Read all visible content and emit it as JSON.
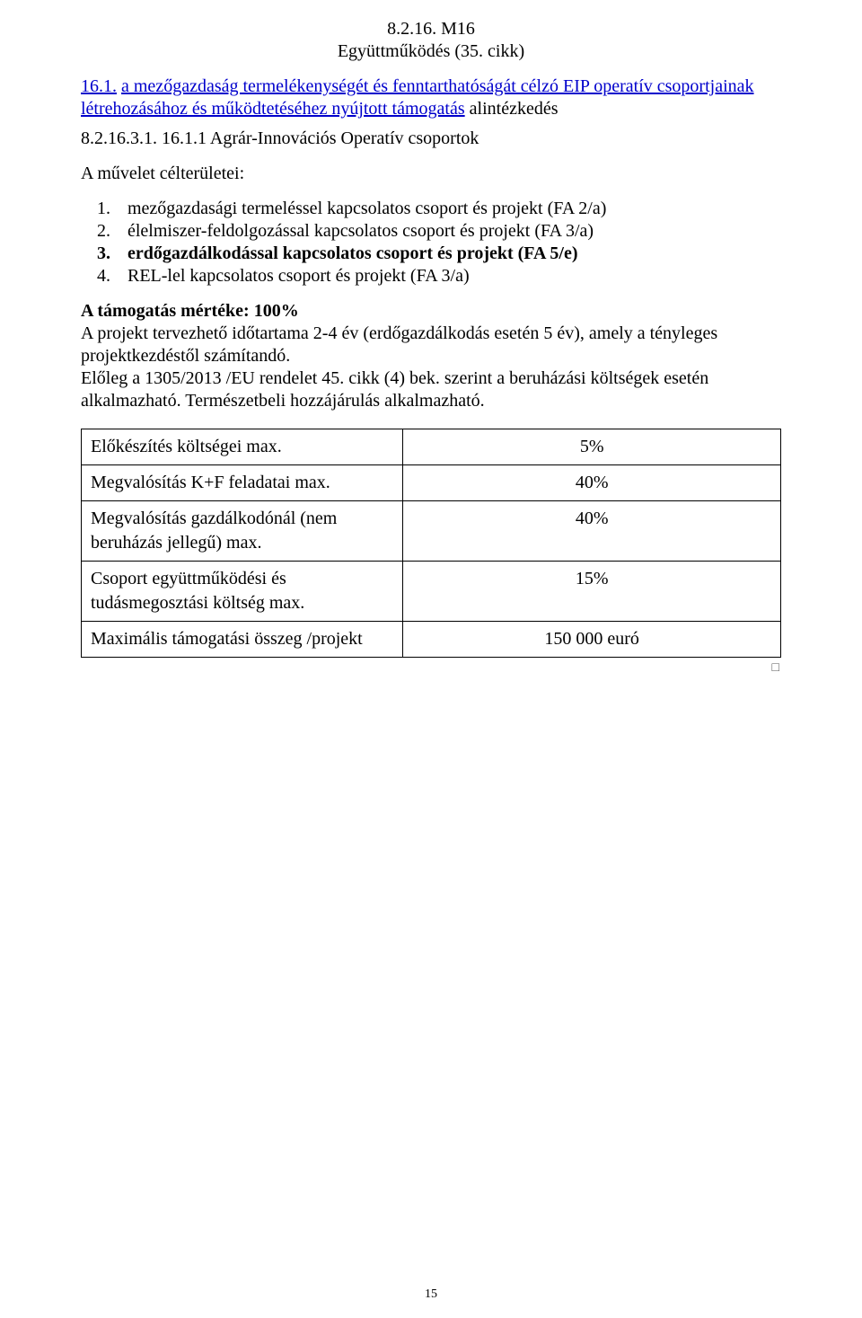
{
  "header": {
    "line1": "8.2.16. M16",
    "line2": "Együttműködés (35. cikk)"
  },
  "sections": {
    "s161": {
      "num": "16.1.",
      "link_text": "a mezőgazdaság termelékenységét és fenntarthatóságát célzó EIP operatív csoportjainak létrehozásához és működtetéséhez nyújtott támogatás",
      "continuation": " alintézkedés",
      "subcode": "8.2.16.3.1. 16.1.1 Agrár-Innovációs Operatív csoportok"
    },
    "goals": {
      "heading": "A művelet célterületei:",
      "items": [
        {
          "n": "1.",
          "text": "mezőgazdasági termeléssel kapcsolatos csoport és projekt (FA 2/a)"
        },
        {
          "n": "2.",
          "text": "élelmiszer-feldolgozással kapcsolatos csoport és projekt (FA 3/a)"
        },
        {
          "n": "3.",
          "text": "erdőgazdálkodással kapcsolatos csoport és projekt (FA 5/e)",
          "bold": true
        },
        {
          "n": "4.",
          "text": "REL-lel kapcsolatos csoport és projekt (FA 3/a)"
        }
      ]
    },
    "support": {
      "heading_bold": "A támogatás mértéke: 100%",
      "para1": "A projekt tervezhető időtartama 2-4 év (erdőgazdálkodás esetén 5 év), amely a tényleges projektkezdéstől számítandó.",
      "para2": "Előleg a 1305/2013 /EU rendelet 45. cikk (4) bek. szerint a beruházási költségek esetén alkalmazható. Természetbeli hozzájárulás alkalmazható."
    }
  },
  "table_rows": [
    {
      "label": "Előkészítés költségei  max.",
      "value": "5%"
    },
    {
      "label": "Megvalósítás  K+F  feladatai max.",
      "value": "40%"
    },
    {
      "label": "Megvalósítás  gazdálkodónál (nem beruházás jellegű) max.",
      "value": "40%"
    },
    {
      "label": "Csoport  együttműködési  és tudásmegosztási költség max.",
      "value": "15%"
    },
    {
      "label": "Maximális  támogatási  összeg /projekt",
      "value": "150 000 euró"
    }
  ],
  "square_mark": "□",
  "page_number": "15",
  "colors": {
    "text": "#000000",
    "link": "#0000cc",
    "border": "#000000",
    "background": "#ffffff"
  },
  "typography": {
    "body_fontsize_pt": 15,
    "font_family": "Times New Roman"
  }
}
